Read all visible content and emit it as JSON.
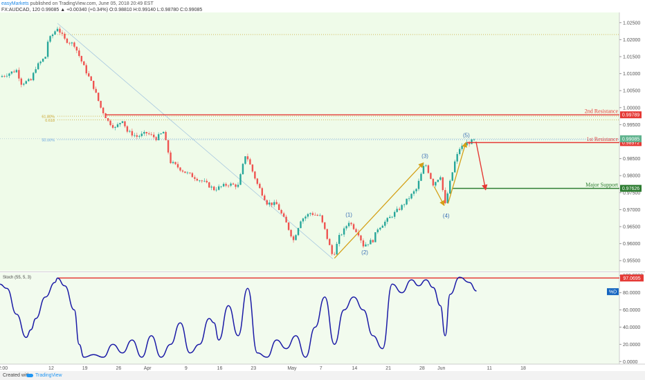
{
  "header": {
    "publisher": "easyMarkets",
    "published_text": "published on TradingView.com, June 05, 2018 20:49 EST",
    "symbol_line": "FX:AUDCAD, 120",
    "price_info": "0.99085 ▲ +0.00340 (+0.34%) O:0.98810 H:0.99140 L:0.98780 C:0.99085"
  },
  "footer": {
    "created_with": "Created with",
    "brand": "TradingView"
  },
  "colors": {
    "bg_price": "#effbe9",
    "bg_osc": "#f2fbee",
    "bull": "#26a69a",
    "bear": "#ef5350",
    "resistance": "#e53935",
    "support": "#2e7d32",
    "wave": "#d4a017",
    "stoch": "#1a1aa6",
    "fib": "#c9a227",
    "half": "#64a0e0"
  },
  "chart_data": [
    {
      "type": "candlestick",
      "symbol": "FX:AUDCAD",
      "interval": "120",
      "y_axis": {
        "range": [
          0.952,
          1.028
        ],
        "ticks": [
          "1.02500",
          "1.02000",
          "1.01500",
          "1.01000",
          "1.00500",
          "1.00000",
          "0.99500",
          "0.99000",
          "0.98500",
          "0.98000",
          "0.97500",
          "0.97000",
          "0.96500",
          "0.96000",
          "0.95500"
        ]
      },
      "x_axis": {
        "ticks": [
          {
            "label": "2:00",
            "day": -12.8
          },
          {
            "label": "12",
            "day": -2.8
          },
          {
            "label": "19",
            "day": 4.2
          },
          {
            "label": "26",
            "day": 11.2
          },
          {
            "label": "Apr",
            "day": 17.2
          },
          {
            "label": "9",
            "day": 25.2
          },
          {
            "label": "16",
            "day": 32.2
          },
          {
            "label": "23",
            "day": 39.2
          },
          {
            "label": "May",
            "day": 47.2
          },
          {
            "label": "7",
            "day": 53.2
          },
          {
            "label": "14",
            "day": 60.2
          },
          {
            "label": "21",
            "day": 67.2
          },
          {
            "label": "28",
            "day": 74.2
          },
          {
            "label": "Jun",
            "day": 78.2
          },
          {
            "label": "11",
            "day": 88.2
          },
          {
            "label": "18",
            "day": 95.2
          }
        ]
      },
      "close_path": [
        {
          "day": -13.5,
          "price": 1.009
        },
        {
          "day": -10,
          "price": 1.011
        },
        {
          "day": -9,
          "price": 1.0072
        },
        {
          "day": -7,
          "price": 1.008
        },
        {
          "day": -6,
          "price": 1.0118
        },
        {
          "day": -4,
          "price": 1.015
        },
        {
          "day": -3.5,
          "price": 1.0195
        },
        {
          "day": -1.5,
          "price": 1.0235
        },
        {
          "day": 0,
          "price": 1.02
        },
        {
          "day": 2,
          "price": 1.0185
        },
        {
          "day": 4,
          "price": 1.012
        },
        {
          "day": 6,
          "price": 1.006
        },
        {
          "day": 7.5,
          "price": 1.0
        },
        {
          "day": 9,
          "price": 0.996
        },
        {
          "day": 10.5,
          "price": 0.994
        },
        {
          "day": 12,
          "price": 0.9965
        },
        {
          "day": 13,
          "price": 0.993
        },
        {
          "day": 15,
          "price": 0.9915
        },
        {
          "day": 17,
          "price": 0.9925
        },
        {
          "day": 19,
          "price": 0.991
        },
        {
          "day": 20.5,
          "price": 0.9928
        },
        {
          "day": 22,
          "price": 0.984
        },
        {
          "day": 25,
          "price": 0.981
        },
        {
          "day": 29,
          "price": 0.978
        },
        {
          "day": 31,
          "price": 0.976
        },
        {
          "day": 34,
          "price": 0.9775
        },
        {
          "day": 36,
          "price": 0.977
        },
        {
          "day": 37.5,
          "price": 0.986
        },
        {
          "day": 38,
          "price": 0.985
        },
        {
          "day": 40,
          "price": 0.9775
        },
        {
          "day": 42,
          "price": 0.972
        },
        {
          "day": 44,
          "price": 0.9715
        },
        {
          "day": 46,
          "price": 0.966
        },
        {
          "day": 47.5,
          "price": 0.961
        },
        {
          "day": 49,
          "price": 0.967
        },
        {
          "day": 51,
          "price": 0.969
        },
        {
          "day": 53,
          "price": 0.968
        },
        {
          "day": 54,
          "price": 0.964
        },
        {
          "day": 55.7,
          "price": 0.956
        },
        {
          "day": 57,
          "price": 0.962
        },
        {
          "day": 58,
          "price": 0.964
        },
        {
          "day": 59,
          "price": 0.9665
        },
        {
          "day": 61,
          "price": 0.963
        },
        {
          "day": 62,
          "price": 0.9595
        },
        {
          "day": 64,
          "price": 0.961
        },
        {
          "day": 65,
          "price": 0.9645
        },
        {
          "day": 67,
          "price": 0.967
        },
        {
          "day": 70,
          "price": 0.971
        },
        {
          "day": 73,
          "price": 0.976
        },
        {
          "day": 74.8,
          "price": 0.9838
        },
        {
          "day": 76.5,
          "price": 0.9775
        },
        {
          "day": 78,
          "price": 0.98
        },
        {
          "day": 79,
          "price": 0.9715
        },
        {
          "day": 80,
          "price": 0.978
        },
        {
          "day": 81,
          "price": 0.984
        },
        {
          "day": 82,
          "price": 0.988
        },
        {
          "day": 83.5,
          "price": 0.9895
        },
        {
          "day": 85.3,
          "price": 0.9905
        }
      ],
      "fib_levels": [
        {
          "label": "61.80%",
          "price": 0.9975
        },
        {
          "label": "0.618",
          "price": 0.9964
        },
        {
          "label": "50.00%",
          "price": 0.9906
        }
      ],
      "top_dotted_level": 1.0215,
      "levels": [
        {
          "name": "2nd Resistance",
          "price": 0.99789,
          "price_label": "0.99789",
          "from_day": 8.5
        },
        {
          "name": "1st Resistance",
          "price": 0.98972,
          "price_label": "0.98972",
          "from_day": 83.5
        },
        {
          "name": "Major Support",
          "price": 0.97626,
          "price_label": "0.97626",
          "from_day": 80.5
        }
      ],
      "last_price": {
        "price": 0.99085,
        "price_label": "0.99085"
      },
      "wave_labels": [
        {
          "label": "(1)",
          "day": 59,
          "price": 0.9665
        },
        {
          "label": "(2)",
          "day": 62.3,
          "price": 0.9595
        },
        {
          "label": "(3)",
          "day": 74.8,
          "price": 0.9838
        },
        {
          "label": "(4)",
          "day": 79.2,
          "price": 0.9705
        },
        {
          "label": "(5)",
          "day": 83.4,
          "price": 0.9905
        }
      ],
      "wave_arrows": [
        {
          "from": {
            "day": 56,
            "price": 0.9557
          },
          "to": {
            "day": 74.5,
            "price": 0.9838
          }
        },
        {
          "from": {
            "day": 76.7,
            "price": 0.9768
          },
          "to": {
            "day": 78.8,
            "price": 0.9712
          }
        },
        {
          "from": {
            "day": 79.6,
            "price": 0.9718
          },
          "to": {
            "day": 83.3,
            "price": 0.9898
          }
        }
      ],
      "forecast_arrow": {
        "from": {
          "day": 85.4,
          "price": 0.99
        },
        "to": {
          "day": 87.4,
          "price": 0.9758
        }
      },
      "trendline": {
        "from": {
          "day": -1.5,
          "price": 1.0248
        },
        "to": {
          "day": 55.7,
          "price": 0.9555
        }
      }
    },
    {
      "type": "line",
      "title": "Stoch (55, 5, 3)",
      "series": [
        {
          "name": "%D"
        }
      ],
      "y_axis": {
        "range": [
          -3,
          103
        ],
        "ticks": [
          "100.0000",
          "80.0000",
          "60.0000",
          "40.0000",
          "20.0000",
          "0.0000"
        ]
      },
      "threshold": {
        "value": 97.0695,
        "label": "97.0695",
        "from_day": -1.5
      },
      "x": [
        -13.5,
        -12,
        -10,
        -8,
        -7,
        -6,
        -4,
        -2,
        -1.5,
        0,
        2,
        3,
        4,
        6,
        8,
        10,
        12,
        14,
        16,
        18,
        20,
        22,
        24,
        26,
        28,
        30,
        31,
        32,
        34,
        36,
        38,
        40,
        42,
        44,
        46,
        48,
        50,
        52,
        54,
        56,
        58,
        60,
        62,
        64,
        66,
        68,
        70,
        72,
        73.5,
        75,
        76.5,
        78,
        79,
        80,
        82,
        84,
        85.5
      ],
      "values": [
        90,
        85,
        55,
        28,
        37,
        50,
        75,
        92,
        97,
        88,
        60,
        20,
        5,
        8,
        5,
        20,
        10,
        25,
        5,
        30,
        5,
        20,
        45,
        10,
        20,
        50,
        45,
        25,
        65,
        30,
        85,
        10,
        5,
        25,
        15,
        30,
        5,
        40,
        75,
        20,
        60,
        75,
        60,
        30,
        15,
        90,
        80,
        95,
        88,
        95,
        86,
        65,
        30,
        78,
        98,
        92,
        82
      ]
    }
  ]
}
